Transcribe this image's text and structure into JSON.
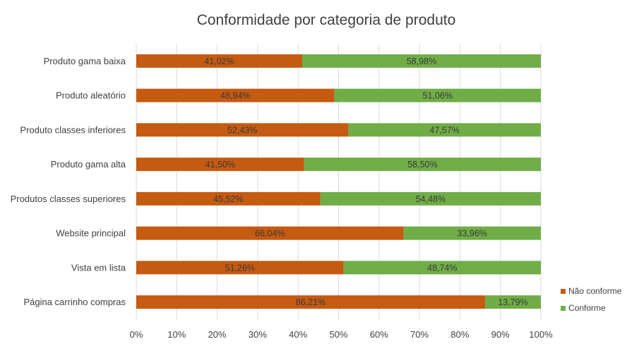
{
  "chart_data": {
    "type": "bar",
    "orientation": "horizontal",
    "stacked": true,
    "title": "Conformidade  por categoria de produto",
    "categories": [
      "Produto gama baixa",
      "Produto aleatório",
      "Produto classes inferiores",
      "Produto gama alta",
      "Produtos classes superiores",
      "Website principal",
      "Vista em lista",
      "Página carrinho compras"
    ],
    "series": [
      {
        "name": "Não conforme",
        "color": "#C55A11",
        "values": [
          41.02,
          48.94,
          52.43,
          41.5,
          45.52,
          66.04,
          51.26,
          86.21
        ],
        "labels": [
          "41,02%",
          "48,94%",
          "52,43%",
          "41,50%",
          "45,52%",
          "66,04%",
          "51,26%",
          "86,21%"
        ]
      },
      {
        "name": "Conforme",
        "color": "#70AD47",
        "values": [
          58.98,
          51.06,
          47.57,
          58.5,
          54.48,
          33.96,
          48.74,
          13.79
        ],
        "labels": [
          "58,98%",
          "51,06%",
          "47,57%",
          "58,50%",
          "54,48%",
          "33,96%",
          "48,74%",
          "13,79%"
        ]
      }
    ],
    "xlim": [
      0,
      100
    ],
    "xticks": [
      "0%",
      "10%",
      "20%",
      "30%",
      "40%",
      "50%",
      "60%",
      "70%",
      "80%",
      "90%",
      "100%"
    ],
    "grid": true,
    "legend_position": "bottom-right"
  }
}
